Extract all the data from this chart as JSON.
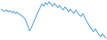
{
  "values": [
    58,
    56,
    55,
    57,
    54,
    56,
    53,
    55,
    52,
    54,
    51,
    50,
    48,
    46,
    42,
    35,
    28,
    32,
    38,
    44,
    50,
    55,
    60,
    65,
    62,
    67,
    64,
    68,
    65,
    62,
    66,
    63,
    60,
    63,
    59,
    57,
    61,
    58,
    54,
    58,
    55,
    52,
    57,
    53,
    50,
    48,
    52,
    47,
    42,
    38,
    34,
    30,
    27,
    31,
    27,
    23,
    20,
    24,
    21,
    18
  ],
  "line_color": "#4a9fd4",
  "bg_color": "#ffffff",
  "linewidth": 0.7
}
